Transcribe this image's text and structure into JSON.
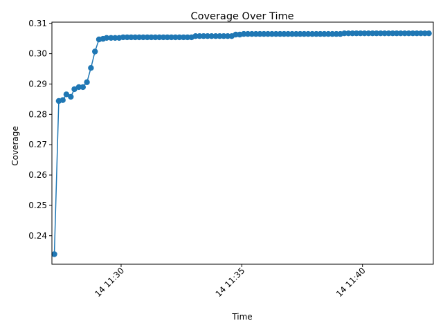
{
  "chart_data": {
    "type": "line",
    "title": "Coverage Over Time",
    "xlabel": "Time",
    "ylabel": "Coverage",
    "x_ticks": [
      "14 11:30",
      "14 11:35",
      "14 11:40"
    ],
    "x_tick_values": [
      30,
      35,
      40
    ],
    "y_ticks": [
      "0.24",
      "0.25",
      "0.26",
      "0.27",
      "0.28",
      "0.29",
      "0.30",
      "0.31"
    ],
    "y_tick_values": [
      0.24,
      0.25,
      0.26,
      0.27,
      0.28,
      0.29,
      0.3,
      0.31
    ],
    "xlim": [
      "11:27:08",
      "11:42:56"
    ],
    "ylim": [
      0.2306,
      0.3104
    ],
    "grid": false,
    "series_color": "#1f77b4",
    "marker": "circle",
    "series": [
      {
        "x": [
          "11:27:14",
          "11:27:25",
          "11:27:35",
          "11:27:44",
          "11:27:55",
          "11:28:04",
          "11:28:15",
          "11:28:25",
          "11:28:35",
          "11:28:45",
          "11:28:55",
          "11:29:05",
          "11:29:15",
          "11:29:24",
          "11:29:35",
          "11:29:45",
          "11:29:55",
          "11:30:05",
          "11:30:15",
          "11:30:25",
          "11:30:35",
          "11:30:45",
          "11:30:55",
          "11:31:05",
          "11:31:15",
          "11:31:25",
          "11:31:35",
          "11:31:45",
          "11:31:55",
          "11:32:05",
          "11:32:15",
          "11:32:25",
          "11:32:35",
          "11:32:45",
          "11:32:55",
          "11:33:05",
          "11:33:15",
          "11:33:25",
          "11:33:35",
          "11:33:45",
          "11:33:55",
          "11:34:05",
          "11:34:15",
          "11:34:25",
          "11:34:35",
          "11:34:45",
          "11:34:55",
          "11:35:05",
          "11:35:15",
          "11:35:25",
          "11:35:35",
          "11:35:45",
          "11:35:55",
          "11:36:05",
          "11:36:15",
          "11:36:25",
          "11:36:35",
          "11:36:45",
          "11:36:55",
          "11:37:05",
          "11:37:15",
          "11:37:25",
          "11:37:35",
          "11:37:45",
          "11:37:55",
          "11:38:05",
          "11:38:15",
          "11:38:25",
          "11:38:35",
          "11:38:45",
          "11:38:55",
          "11:39:05",
          "11:39:15",
          "11:39:25",
          "11:39:35",
          "11:39:45",
          "11:39:55",
          "11:40:05",
          "11:40:15",
          "11:40:25",
          "11:40:35",
          "11:40:45",
          "11:40:55",
          "11:41:05",
          "11:41:15",
          "11:41:25",
          "11:41:35",
          "11:41:45",
          "11:41:55",
          "11:42:05",
          "11:42:15",
          "11:42:25",
          "11:42:35",
          "11:42:45"
        ],
        "values": [
          0.2339,
          0.2844,
          0.2847,
          0.2866,
          0.2858,
          0.2883,
          0.289,
          0.289,
          0.2906,
          0.2953,
          0.3007,
          0.3047,
          0.3049,
          0.3052,
          0.3052,
          0.3052,
          0.3052,
          0.3054,
          0.3054,
          0.3054,
          0.3054,
          0.3054,
          0.3054,
          0.3054,
          0.3054,
          0.3054,
          0.3054,
          0.3054,
          0.3054,
          0.3054,
          0.3054,
          0.3054,
          0.3054,
          0.3054,
          0.3054,
          0.3058,
          0.3058,
          0.3058,
          0.3058,
          0.3058,
          0.3058,
          0.3058,
          0.3058,
          0.3058,
          0.3058,
          0.3063,
          0.3063,
          0.3065,
          0.3065,
          0.3065,
          0.3065,
          0.3065,
          0.3065,
          0.3065,
          0.3065,
          0.3065,
          0.3065,
          0.3065,
          0.3065,
          0.3065,
          0.3065,
          0.3065,
          0.3065,
          0.3065,
          0.3065,
          0.3065,
          0.3065,
          0.3065,
          0.3065,
          0.3065,
          0.3065,
          0.3065,
          0.3067,
          0.3067,
          0.3067,
          0.3067,
          0.3067,
          0.3067,
          0.3067,
          0.3067,
          0.3067,
          0.3067,
          0.3067,
          0.3067,
          0.3067,
          0.3067,
          0.3067,
          0.3067,
          0.3067,
          0.3067,
          0.3067,
          0.3067,
          0.3067,
          0.3067
        ]
      }
    ]
  }
}
